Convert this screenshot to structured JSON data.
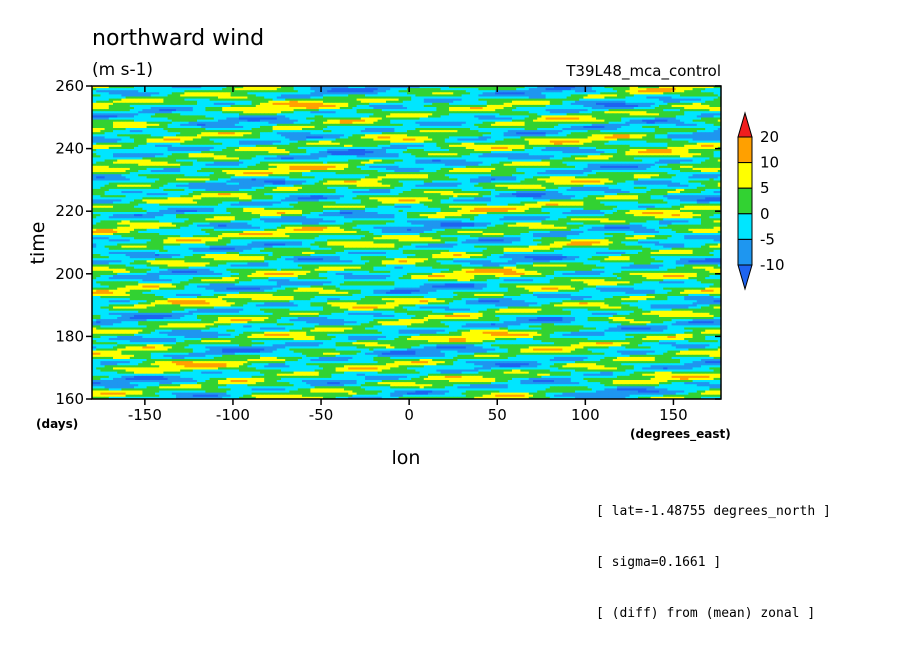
{
  "chart_data": {
    "type": "heatmap",
    "title": "northward wind",
    "subtitle": "(m s-1)",
    "dataset_label": "T39L48_mca_control",
    "xlabel": "lon",
    "ylabel": "time",
    "x_units": "(degrees_east)",
    "y_units": "(days)",
    "xlim": [
      -180,
      177
    ],
    "ylim": [
      160,
      260
    ],
    "x_ticks": [
      -150,
      -100,
      -50,
      0,
      50,
      100,
      150
    ],
    "y_ticks": [
      160,
      180,
      200,
      220,
      240,
      260
    ],
    "x_tick_labels": [
      "-150",
      "-100",
      "-50",
      "0",
      "50",
      "100",
      "150"
    ],
    "y_tick_labels": [
      "160",
      "180",
      "200",
      "220",
      "240",
      "260"
    ],
    "grid": false,
    "colorbar": {
      "placement": "right",
      "levels": [
        -10,
        -5,
        0,
        5,
        10,
        20
      ],
      "level_labels": [
        "-10",
        "-5",
        "0",
        "5",
        "10",
        "20"
      ],
      "colors": [
        "#1e64f0",
        "#1e96f0",
        "#00e6ff",
        "#32d232",
        "#ffff00",
        "#ffa000",
        "#f01e1e"
      ],
      "extend": "both"
    },
    "field_description": "westward/eastward propagating streaks of meridional wind anomaly, values mostly between -10 and 10 m s-1 with occasional peaks above 20"
  },
  "annotations": [
    "[ lat=-1.48755 degrees_north ]",
    "[ sigma=0.1661 ]",
    "[ (diff) from (mean) zonal ]"
  ]
}
